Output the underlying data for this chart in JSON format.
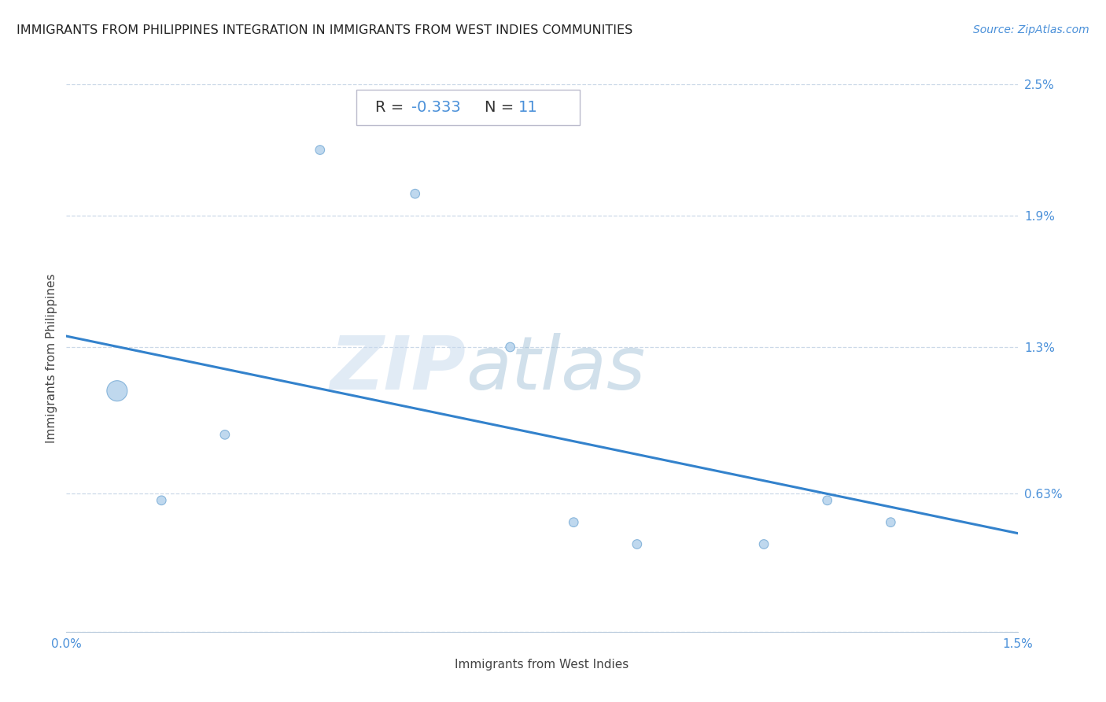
{
  "title": "IMMIGRANTS FROM PHILIPPINES INTEGRATION IN IMMIGRANTS FROM WEST INDIES COMMUNITIES",
  "source": "Source: ZipAtlas.com",
  "xlabel": "Immigrants from West Indies",
  "ylabel": "Immigrants from Philippines",
  "R": -0.333,
  "N": 11,
  "xlim": [
    0.0,
    0.015
  ],
  "ylim": [
    0.0,
    0.025
  ],
  "xticks": [
    0.0,
    0.015
  ],
  "xtick_labels": [
    "0.0%",
    "1.5%"
  ],
  "yticks": [
    0.0,
    0.0063,
    0.013,
    0.019,
    0.025
  ],
  "ytick_labels": [
    "",
    "0.63%",
    "1.3%",
    "1.9%",
    "2.5%"
  ],
  "scatter_x": [
    0.0008,
    0.0025,
    0.004,
    0.0055,
    0.007,
    0.008,
    0.009,
    0.011,
    0.012,
    0.013,
    0.0015
  ],
  "scatter_y": [
    0.011,
    0.009,
    0.022,
    0.02,
    0.013,
    0.005,
    0.004,
    0.004,
    0.006,
    0.005,
    0.006
  ],
  "scatter_sizes": [
    350,
    70,
    70,
    70,
    70,
    70,
    70,
    70,
    70,
    70,
    70
  ],
  "scatter_color": "#b8d4ed",
  "scatter_edge_color": "#7fb0d8",
  "trend_x0": 0.0,
  "trend_y0": 0.0135,
  "trend_x1": 0.015,
  "trend_y1": 0.0045,
  "trend_color": "#3382cc",
  "line_width": 2.2,
  "watermark_zip": "ZIP",
  "watermark_atlas": "atlas",
  "background_color": "#ffffff",
  "grid_color": "#ccd9e8",
  "title_color": "#222222",
  "axis_label_color": "#444444",
  "tick_label_color": "#4a90d9",
  "title_fontsize": 11.5,
  "source_fontsize": 10,
  "axis_label_fontsize": 11,
  "tick_fontsize": 11,
  "annotation_fontsize": 14
}
